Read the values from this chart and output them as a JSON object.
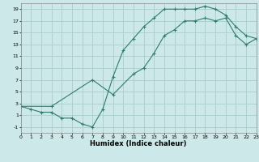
{
  "title": "",
  "xlabel": "Humidex (Indice chaleur)",
  "bg_color": "#cce8e8",
  "grid_color": "#aacccc",
  "line_color": "#2e7d6e",
  "xlim": [
    0,
    23
  ],
  "ylim": [
    -2,
    20
  ],
  "xticks": [
    0,
    1,
    2,
    3,
    4,
    5,
    6,
    7,
    8,
    9,
    10,
    11,
    12,
    13,
    14,
    15,
    16,
    17,
    18,
    19,
    20,
    21,
    22,
    23
  ],
  "yticks": [
    -1,
    1,
    3,
    5,
    7,
    9,
    11,
    13,
    15,
    17,
    19
  ],
  "line1_x": [
    0,
    1,
    2,
    3,
    4,
    5,
    6,
    7,
    8,
    9,
    10,
    11,
    12,
    13,
    14,
    15,
    16,
    17,
    18,
    19,
    20,
    21,
    22,
    23
  ],
  "line1_y": [
    2.5,
    2.0,
    1.5,
    1.5,
    0.5,
    0.5,
    -0.5,
    -1.0,
    2.0,
    7.5,
    12.0,
    14.0,
    16.0,
    17.5,
    19.0,
    19.0,
    19.0,
    19.0,
    19.5,
    19.0,
    18.0,
    16.0,
    14.5,
    14.0
  ],
  "line2_x": [
    0,
    3,
    7,
    9,
    11,
    12,
    13,
    14,
    15,
    16,
    17,
    18,
    19,
    20,
    21,
    22,
    23
  ],
  "line2_y": [
    2.5,
    2.5,
    7.0,
    4.5,
    8.0,
    9.0,
    11.5,
    14.5,
    15.5,
    17.0,
    17.0,
    17.5,
    17.0,
    17.5,
    14.5,
    13.0,
    14.0
  ],
  "xlabel_fontsize": 6,
  "tick_fontsize": 4.5,
  "linewidth": 0.8,
  "markersize": 3
}
